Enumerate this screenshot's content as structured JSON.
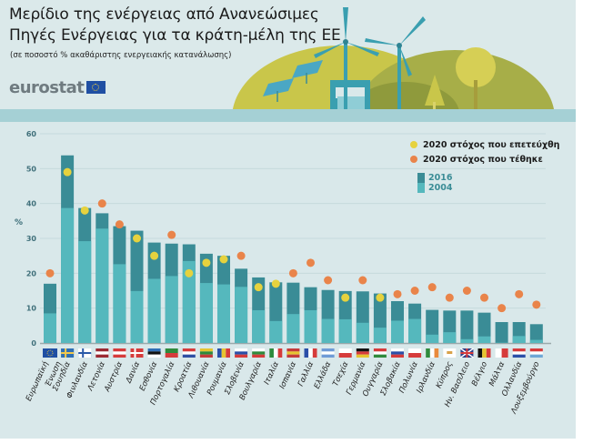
{
  "header": {
    "title_line1": "Μερίδιο της ενέργειας από Ανανεώσιμες",
    "title_line2": "Πηγές Ενέργειας για τα κράτη-μέλη της ΕΕ",
    "subtitle": "(σε ποσοστό % ακαθάριστης ενεργειακής κατανάλωσης)",
    "logo": "eurostat"
  },
  "colors": {
    "bar_2016": "#3a8c96",
    "bar_2004": "#55b8bd",
    "target_reached": "#e6d23e",
    "target_set": "#e9844a",
    "background": "#d9e8ea",
    "band": "#a5d0d5",
    "axis_text": "#3f6f7a"
  },
  "legend": {
    "reached": "2020 στόχος που επετεύχθη",
    "set": "2020 στόχος που τέθηκε",
    "y2016": "2016",
    "y2004": "2004"
  },
  "chart_data": {
    "type": "bar",
    "title": "Μερίδιο της ενέργειας από Ανανεώσιμες Πηγές Ενέργειας για τα κράτη-μέλη της ΕΕ",
    "subtitle": "(σε ποσοστό % ακαθάριστης ενεργειακής κατανάλωσης)",
    "xlabel": "",
    "ylabel": "%",
    "ylim": [
      0,
      60
    ],
    "yticks": [
      0,
      10,
      20,
      30,
      40,
      50,
      60
    ],
    "grid": true,
    "legend_position": "top-right",
    "categories": [
      "Ευρωπαϊκή Ένωση",
      "Σουηδία",
      "Φινλανδία",
      "Λετονία",
      "Αυστρία",
      "Δανία",
      "Εσθονία",
      "Πορτογαλία",
      "Κροατία",
      "Λιθουανία",
      "Ρουμανία",
      "Σλοβενία",
      "Βουλγαρία",
      "Ιταλία",
      "Ισπανία",
      "Γαλλία",
      "Ελλάδα",
      "Τσεχία",
      "Γερμανία",
      "Ουγγαρία",
      "Σλοβακία",
      "Πολωνία",
      "Ιρλανδία",
      "Κύπρος",
      "Ην. Βασίλειο",
      "Βέλγιο",
      "Μάλτα",
      "Ολλανδία",
      "Λουξεμβούργο"
    ],
    "flags": [
      "eu",
      "se",
      "fi",
      "lv",
      "at",
      "dk",
      "ee",
      "pt",
      "hr",
      "lt",
      "ro",
      "si",
      "bg",
      "it",
      "es",
      "fr",
      "gr",
      "cz",
      "de",
      "hu",
      "sk",
      "pl",
      "ie",
      "cy",
      "uk",
      "be",
      "mt",
      "nl",
      "lu"
    ],
    "series": [
      {
        "name": "2016",
        "values": [
          17.0,
          53.8,
          38.7,
          37.2,
          33.5,
          32.2,
          28.8,
          28.5,
          28.3,
          25.6,
          25.0,
          21.3,
          18.8,
          17.4,
          17.3,
          16.0,
          15.2,
          14.9,
          14.8,
          14.2,
          12.0,
          11.3,
          9.5,
          9.3,
          9.3,
          8.7,
          6.0,
          6.0,
          5.4
        ]
      },
      {
        "name": "2004",
        "values": [
          8.5,
          38.7,
          29.2,
          32.8,
          22.6,
          14.9,
          18.4,
          19.2,
          23.5,
          17.2,
          16.8,
          16.1,
          9.4,
          6.3,
          8.3,
          9.4,
          6.9,
          6.8,
          5.8,
          4.4,
          6.4,
          6.9,
          2.4,
          3.1,
          1.1,
          1.9,
          0.1,
          2.0,
          0.9
        ]
      },
      {
        "name": "2020 target",
        "values": [
          20,
          49,
          38,
          40,
          34,
          30,
          25,
          31,
          20,
          23,
          24,
          25,
          16,
          17,
          20,
          23,
          18,
          13,
          18,
          13,
          14,
          15,
          16,
          13,
          15,
          13,
          10,
          14,
          11
        ],
        "reached": [
          false,
          true,
          true,
          false,
          false,
          true,
          true,
          false,
          true,
          true,
          true,
          false,
          true,
          true,
          false,
          false,
          false,
          true,
          false,
          true,
          false,
          false,
          false,
          false,
          false,
          false,
          false,
          false,
          false
        ]
      }
    ]
  }
}
